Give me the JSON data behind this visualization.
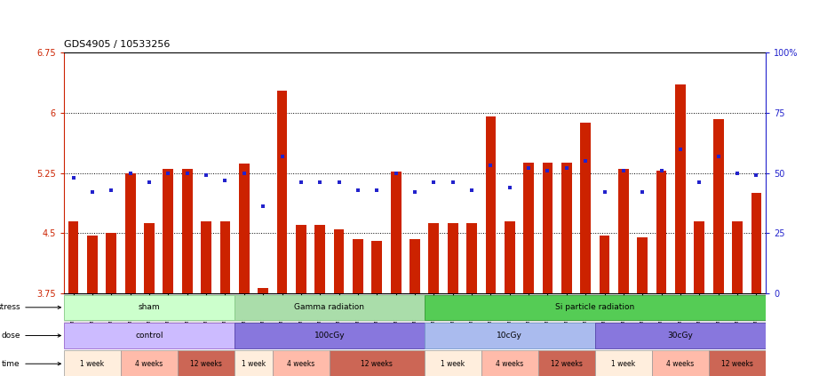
{
  "title": "GDS4905 / 10533256",
  "gsm_labels": [
    "GSM1176963",
    "GSM1176964",
    "GSM1176965",
    "GSM1176975",
    "GSM1176976",
    "GSM1176977",
    "GSM1176978",
    "GSM1176988",
    "GSM1176989",
    "GSM1176990",
    "GSM1176954",
    "GSM1176955",
    "GSM1176956",
    "GSM1176966",
    "GSM1176967",
    "GSM1176968",
    "GSM1176979",
    "GSM1176980",
    "GSM1176981",
    "GSM1176960",
    "GSM1176961",
    "GSM1176962",
    "GSM1176972",
    "GSM1176973",
    "GSM1176974",
    "GSM1176985",
    "GSM1176986",
    "GSM1176987",
    "GSM1176957",
    "GSM1176958",
    "GSM1176959",
    "GSM1176969",
    "GSM1176970",
    "GSM1176971",
    "GSM1176982",
    "GSM1176983",
    "GSM1176984"
  ],
  "bar_values": [
    4.65,
    4.47,
    4.5,
    5.25,
    4.63,
    5.3,
    5.3,
    4.65,
    4.65,
    5.37,
    3.82,
    6.28,
    4.6,
    4.6,
    4.55,
    4.43,
    4.4,
    5.27,
    4.42,
    4.63,
    4.63,
    4.63,
    5.96,
    4.65,
    5.38,
    5.38,
    5.38,
    5.88,
    4.47,
    5.3,
    4.45,
    5.28,
    6.35,
    4.65,
    5.92,
    4.65,
    5.0
  ],
  "percentile_values": [
    48,
    42,
    43,
    50,
    46,
    50,
    50,
    49,
    47,
    50,
    36,
    57,
    46,
    46,
    46,
    43,
    43,
    50,
    42,
    46,
    46,
    43,
    53,
    44,
    52,
    51,
    52,
    55,
    42,
    51,
    42,
    51,
    60,
    46,
    57,
    50,
    49
  ],
  "bar_color": "#cc2200",
  "dot_color": "#2222cc",
  "ymin": 3.75,
  "ymax": 6.75,
  "yticks": [
    3.75,
    4.5,
    5.25,
    6.0,
    6.75
  ],
  "ytick_labels": [
    "3.75",
    "4.5",
    "5.25",
    "6",
    "6.75"
  ],
  "y2min": 0,
  "y2max": 100,
  "y2ticks": [
    0,
    25,
    50,
    75,
    100
  ],
  "y2tick_labels": [
    "0",
    "25",
    "50",
    "75",
    "100%"
  ],
  "hlines": [
    6.0,
    5.25,
    4.5
  ],
  "stress_groups": [
    {
      "label": "sham",
      "start": 0,
      "end": 9,
      "color": "#ccffcc",
      "border": "#88cc88"
    },
    {
      "label": "Gamma radiation",
      "start": 9,
      "end": 19,
      "color": "#aaddaa",
      "border": "#88cc88"
    },
    {
      "label": "Si particle radiation",
      "start": 19,
      "end": 37,
      "color": "#55cc55",
      "border": "#339933"
    }
  ],
  "dose_groups": [
    {
      "label": "control",
      "start": 0,
      "end": 9,
      "color": "#ccbbff",
      "border": "#9966cc"
    },
    {
      "label": "100cGy",
      "start": 9,
      "end": 19,
      "color": "#8877dd",
      "border": "#5544aa"
    },
    {
      "label": "10cGy",
      "start": 19,
      "end": 28,
      "color": "#aabbee",
      "border": "#7799cc"
    },
    {
      "label": "30cGy",
      "start": 28,
      "end": 37,
      "color": "#8877dd",
      "border": "#5544aa"
    }
  ],
  "time_groups": [
    {
      "label": "1 week",
      "start": 0,
      "end": 3,
      "color": "#ffeedd"
    },
    {
      "label": "4 weeks",
      "start": 3,
      "end": 6,
      "color": "#ffbbaa"
    },
    {
      "label": "12 weeks",
      "start": 6,
      "end": 9,
      "color": "#cc6655"
    },
    {
      "label": "1 week",
      "start": 9,
      "end": 11,
      "color": "#ffeedd"
    },
    {
      "label": "4 weeks",
      "start": 11,
      "end": 14,
      "color": "#ffbbaa"
    },
    {
      "label": "12 weeks",
      "start": 14,
      "end": 19,
      "color": "#cc6655"
    },
    {
      "label": "1 week",
      "start": 19,
      "end": 22,
      "color": "#ffeedd"
    },
    {
      "label": "4 weeks",
      "start": 22,
      "end": 25,
      "color": "#ffbbaa"
    },
    {
      "label": "12 weeks",
      "start": 25,
      "end": 28,
      "color": "#cc6655"
    },
    {
      "label": "1 week",
      "start": 28,
      "end": 31,
      "color": "#ffeedd"
    },
    {
      "label": "4 weeks",
      "start": 31,
      "end": 34,
      "color": "#ffbbaa"
    },
    {
      "label": "12 weeks",
      "start": 34,
      "end": 37,
      "color": "#cc6655"
    }
  ]
}
